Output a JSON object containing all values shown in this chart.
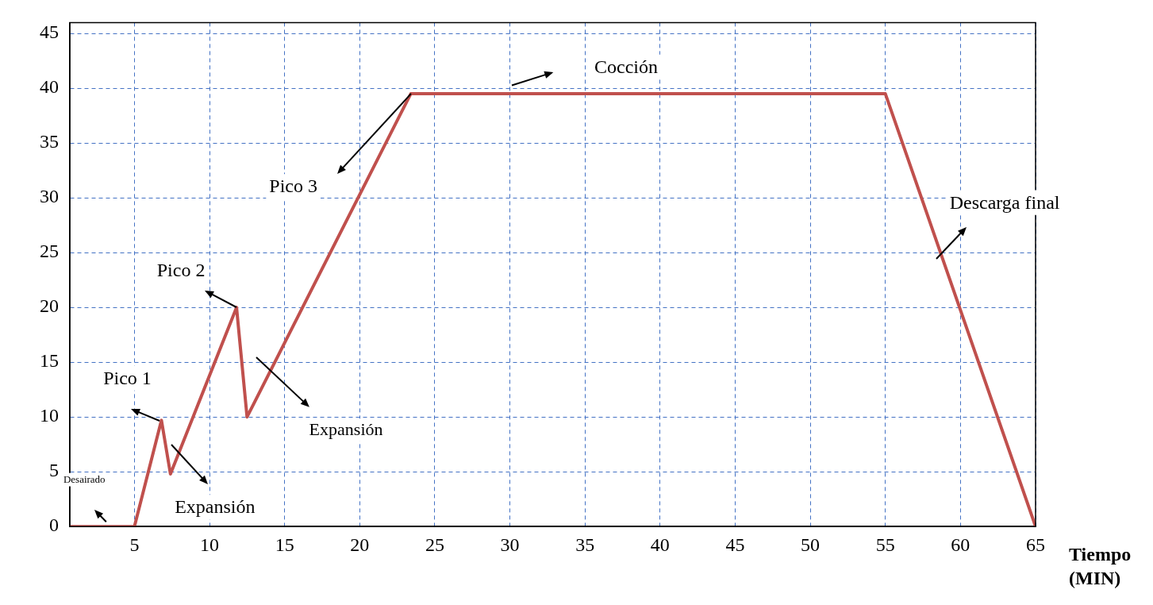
{
  "chart_data": {
    "type": "line",
    "xlabel": "Tiempo (MIN)",
    "x": [
      0.7,
      5,
      6.8,
      7.4,
      11.8,
      12.5,
      23.4,
      55,
      65
    ],
    "series": [
      {
        "color": "#c0504d",
        "values": [
          0,
          0,
          9.7,
          4.8,
          20,
          10,
          39.5,
          39.5,
          0
        ]
      }
    ],
    "xlim": [
      0.7,
      65
    ],
    "xticks": [
      5,
      10,
      15,
      20,
      25,
      30,
      35,
      40,
      45,
      50,
      55,
      60,
      65
    ],
    "ylim": [
      0,
      46
    ],
    "yticks": [
      0,
      5,
      10,
      15,
      20,
      25,
      30,
      35,
      40,
      45
    ],
    "grid": true,
    "annotations": [
      "Desairado",
      {
        "text": "Pico 1",
        "x": 6.8,
        "y": 9.7
      },
      {
        "text": "Expansión",
        "x": 7.4,
        "y": 4.8
      },
      {
        "text": "Pico 2",
        "x": 11.8,
        "y": 20
      },
      "Expansión",
      {
        "text": "Pico 3",
        "x": 23.4,
        "y": 39.5
      },
      "Cocción",
      {
        "text": "Descarga final",
        "x": 58.4,
        "y": 26
      }
    ]
  }
}
